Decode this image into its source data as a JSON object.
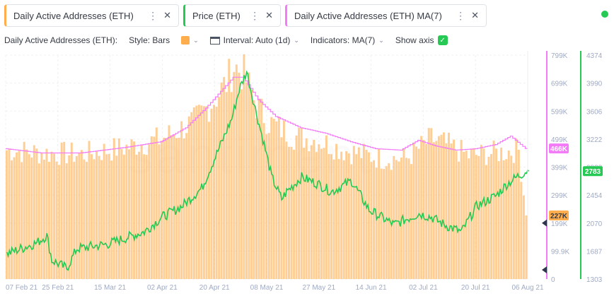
{
  "tabs": [
    {
      "label": "Daily Active Addresses (ETH)",
      "color": "#ffad4d"
    },
    {
      "label": "Price (ETH)",
      "color": "#26c953"
    },
    {
      "label": "Daily Active Addresses (ETH) MA(7)",
      "color": "#f47bf7"
    }
  ],
  "toolbar": {
    "metric_label": "Daily Active Addresses (ETH):",
    "style_label": "Style: Bars",
    "interval_label": "Interval: Auto (1d)",
    "indicators_label": "Indicators: MA(7)",
    "show_axis_label": "Show axis"
  },
  "icons": {
    "menu": "⋮",
    "close": "✕",
    "chevron": "⌄",
    "check": "✓",
    "calendar": "calendar-icon"
  },
  "watermark": "santiment",
  "chart_data": {
    "type": "bar",
    "x_tick_labels": [
      "07 Feb 21",
      "25 Feb 21",
      "15 Mar 21",
      "02 Apr 21",
      "20 Apr 21",
      "08 May 21",
      "27 May 21",
      "14 Jun 21",
      "02 Jul 21",
      "20 Jul 21",
      "06 Aug 21"
    ],
    "series": [
      {
        "name": "Daily Active Addresses (ETH)",
        "color": "#ffad4d",
        "axis_ticks": [
          "799K",
          "699K",
          "599K",
          "499K",
          "399K",
          "299K",
          "199K",
          "99.9K",
          "0"
        ],
        "ylim": [
          0,
          799000
        ],
        "last_value_label": "227K",
        "anchors": [
          [
            0,
            460000
          ],
          [
            14,
            450000
          ],
          [
            30,
            445000
          ],
          [
            48,
            470000
          ],
          [
            62,
            500000
          ],
          [
            75,
            560000
          ],
          [
            83,
            640000
          ],
          [
            88,
            700000
          ],
          [
            91,
            760000
          ],
          [
            95,
            730000
          ],
          [
            100,
            620000
          ],
          [
            105,
            560000
          ],
          [
            115,
            510000
          ],
          [
            125,
            495000
          ],
          [
            135,
            460000
          ],
          [
            150,
            430000
          ],
          [
            160,
            430000
          ],
          [
            170,
            500000
          ],
          [
            176,
            480000
          ],
          [
            185,
            440000
          ],
          [
            195,
            450000
          ],
          [
            205,
            460000
          ],
          [
            208,
            227000
          ]
        ]
      },
      {
        "name": "Daily Active Addresses (ETH) MA(7)",
        "color": "#f47bf7",
        "last_value_label": "466K",
        "anchors": [
          [
            0,
            465000
          ],
          [
            14,
            450000
          ],
          [
            30,
            450000
          ],
          [
            48,
            470000
          ],
          [
            62,
            490000
          ],
          [
            72,
            540000
          ],
          [
            80,
            610000
          ],
          [
            86,
            670000
          ],
          [
            91,
            720000
          ],
          [
            95,
            720000
          ],
          [
            101,
            640000
          ],
          [
            108,
            580000
          ],
          [
            118,
            540000
          ],
          [
            128,
            520000
          ],
          [
            138,
            490000
          ],
          [
            148,
            465000
          ],
          [
            158,
            460000
          ],
          [
            165,
            495000
          ],
          [
            172,
            475000
          ],
          [
            180,
            460000
          ],
          [
            188,
            465000
          ],
          [
            196,
            480000
          ],
          [
            202,
            510000
          ],
          [
            208,
            466000
          ]
        ]
      },
      {
        "name": "Price (ETH)",
        "color": "#26c953",
        "axis_ticks": [
          "4374",
          "3990",
          "3606",
          "3222",
          "2838",
          "2454",
          "2070",
          "1687",
          "1303"
        ],
        "ylim": [
          1303,
          4374
        ],
        "last_value_label": "2783",
        "anchors": [
          [
            0,
            1650
          ],
          [
            12,
            1800
          ],
          [
            16,
            1900
          ],
          [
            18,
            1560
          ],
          [
            24,
            1450
          ],
          [
            28,
            1720
          ],
          [
            40,
            1780
          ],
          [
            55,
            1950
          ],
          [
            62,
            2150
          ],
          [
            70,
            2300
          ],
          [
            78,
            2550
          ],
          [
            85,
            3100
          ],
          [
            90,
            3500
          ],
          [
            93,
            3900
          ],
          [
            96,
            4150
          ],
          [
            99,
            3700
          ],
          [
            103,
            3150
          ],
          [
            106,
            2700
          ],
          [
            110,
            2400
          ],
          [
            112,
            2500
          ],
          [
            118,
            2700
          ],
          [
            125,
            2600
          ],
          [
            130,
            2500
          ],
          [
            138,
            2650
          ],
          [
            145,
            2250
          ],
          [
            155,
            2050
          ],
          [
            165,
            2200
          ],
          [
            170,
            2150
          ],
          [
            175,
            2050
          ],
          [
            182,
            1950
          ],
          [
            188,
            2300
          ],
          [
            196,
            2450
          ],
          [
            200,
            2600
          ],
          [
            204,
            2700
          ],
          [
            208,
            2783
          ]
        ]
      }
    ],
    "n_days": 209
  }
}
